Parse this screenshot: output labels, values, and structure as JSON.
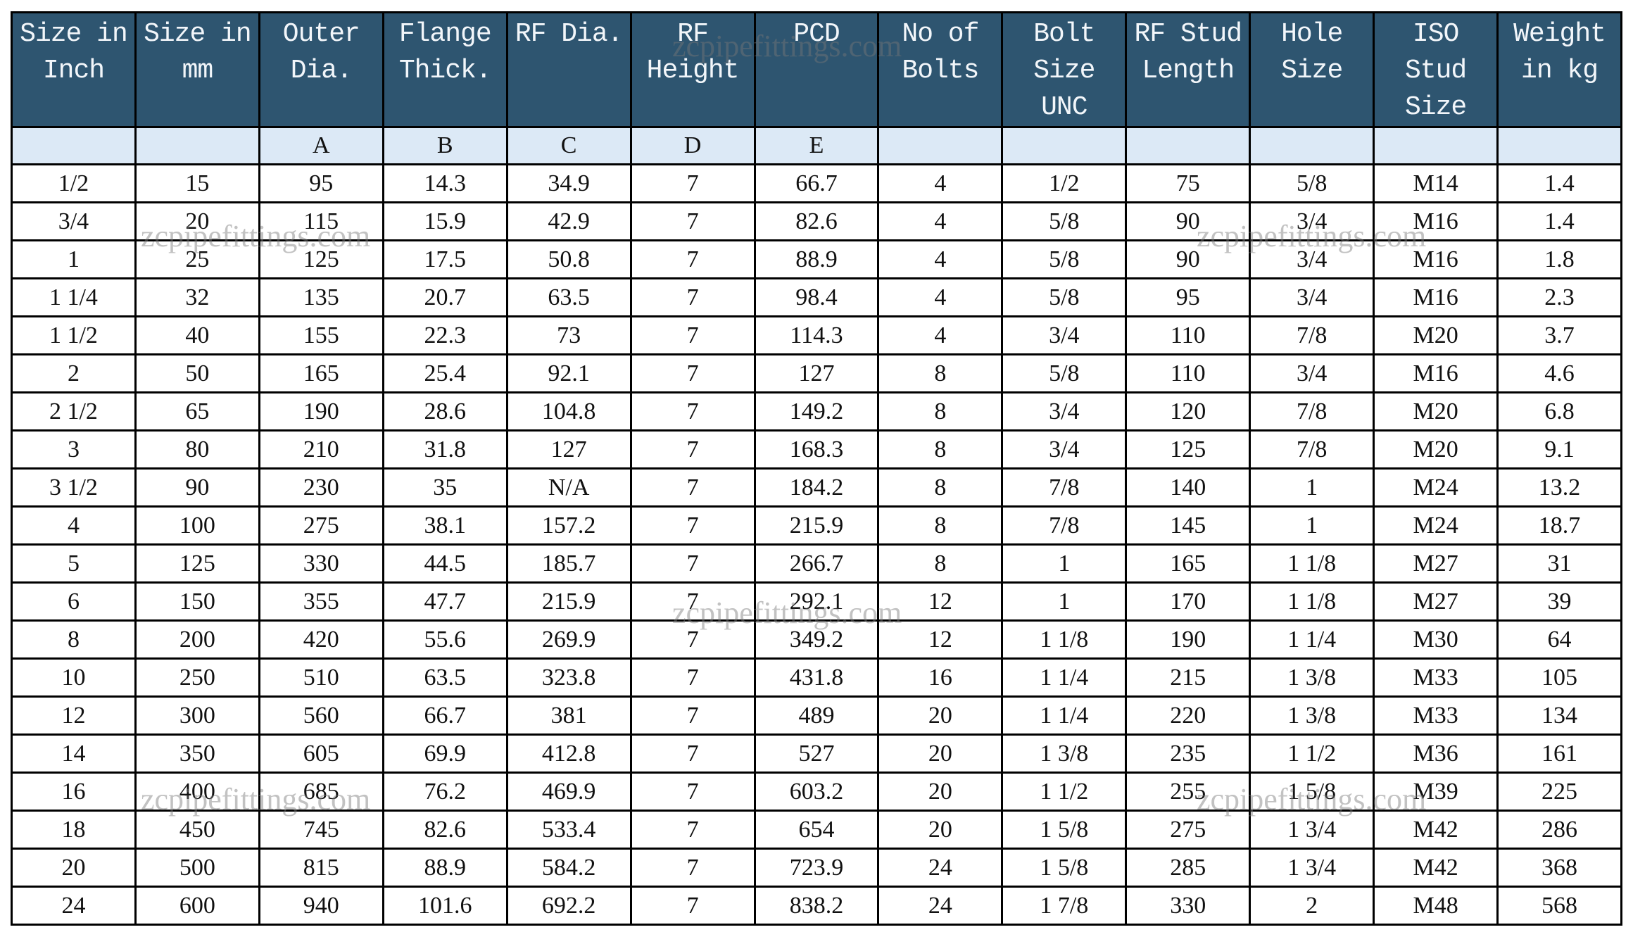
{
  "headers": [
    "Size in Inch",
    "Size in mm",
    "Outer Dia.",
    "Flange Thick.",
    "RF Dia.",
    "RF Height",
    "PCD",
    "No of Bolts",
    "Bolt Size UNC",
    "RF Stud Length",
    "Hole Size",
    "ISO Stud Size",
    "Weight in kg"
  ],
  "letters": [
    "",
    "",
    "A",
    "B",
    "C",
    "D",
    "E",
    "",
    "",
    "",
    "",
    "",
    ""
  ],
  "rows": [
    [
      "1/2",
      "15",
      "95",
      "14.3",
      "34.9",
      "7",
      "66.7",
      "4",
      "1/2",
      "75",
      "5/8",
      "M14",
      "1.4"
    ],
    [
      "3/4",
      "20",
      "115",
      "15.9",
      "42.9",
      "7",
      "82.6",
      "4",
      "5/8",
      "90",
      "3/4",
      "M16",
      "1.4"
    ],
    [
      "1",
      "25",
      "125",
      "17.5",
      "50.8",
      "7",
      "88.9",
      "4",
      "5/8",
      "90",
      "3/4",
      "M16",
      "1.8"
    ],
    [
      "1 1/4",
      "32",
      "135",
      "20.7",
      "63.5",
      "7",
      "98.4",
      "4",
      "5/8",
      "95",
      "3/4",
      "M16",
      "2.3"
    ],
    [
      "1 1/2",
      "40",
      "155",
      "22.3",
      "73",
      "7",
      "114.3",
      "4",
      "3/4",
      "110",
      "7/8",
      "M20",
      "3.7"
    ],
    [
      "2",
      "50",
      "165",
      "25.4",
      "92.1",
      "7",
      "127",
      "8",
      "5/8",
      "110",
      "3/4",
      "M16",
      "4.6"
    ],
    [
      "2 1/2",
      "65",
      "190",
      "28.6",
      "104.8",
      "7",
      "149.2",
      "8",
      "3/4",
      "120",
      "7/8",
      "M20",
      "6.8"
    ],
    [
      "3",
      "80",
      "210",
      "31.8",
      "127",
      "7",
      "168.3",
      "8",
      "3/4",
      "125",
      "7/8",
      "M20",
      "9.1"
    ],
    [
      "3 1/2",
      "90",
      "230",
      "35",
      "N/A",
      "7",
      "184.2",
      "8",
      "7/8",
      "140",
      "1",
      "M24",
      "13.2"
    ],
    [
      "4",
      "100",
      "275",
      "38.1",
      "157.2",
      "7",
      "215.9",
      "8",
      "7/8",
      "145",
      "1",
      "M24",
      "18.7"
    ],
    [
      "5",
      "125",
      "330",
      "44.5",
      "185.7",
      "7",
      "266.7",
      "8",
      "1",
      "165",
      "1 1/8",
      "M27",
      "31"
    ],
    [
      "6",
      "150",
      "355",
      "47.7",
      "215.9",
      "7",
      "292.1",
      "12",
      "1",
      "170",
      "1 1/8",
      "M27",
      "39"
    ],
    [
      "8",
      "200",
      "420",
      "55.6",
      "269.9",
      "7",
      "349.2",
      "12",
      "1 1/8",
      "190",
      "1 1/4",
      "M30",
      "64"
    ],
    [
      "10",
      "250",
      "510",
      "63.5",
      "323.8",
      "7",
      "431.8",
      "16",
      "1 1/4",
      "215",
      "1 3/8",
      "M33",
      "105"
    ],
    [
      "12",
      "300",
      "560",
      "66.7",
      "381",
      "7",
      "489",
      "20",
      "1 1/4",
      "220",
      "1 3/8",
      "M33",
      "134"
    ],
    [
      "14",
      "350",
      "605",
      "69.9",
      "412.8",
      "7",
      "527",
      "20",
      "1 3/8",
      "235",
      "1 1/2",
      "M36",
      "161"
    ],
    [
      "16",
      "400",
      "685",
      "76.2",
      "469.9",
      "7",
      "603.2",
      "20",
      "1 1/2",
      "255",
      "1 5/8",
      "M39",
      "225"
    ],
    [
      "18",
      "450",
      "745",
      "82.6",
      "533.4",
      "7",
      "654",
      "20",
      "1 5/8",
      "275",
      "1 3/4",
      "M42",
      "286"
    ],
    [
      "20",
      "500",
      "815",
      "88.9",
      "584.2",
      "7",
      "723.9",
      "24",
      "1 5/8",
      "285",
      "1 3/4",
      "M42",
      "368"
    ],
    [
      "24",
      "600",
      "940",
      "101.6",
      "692.2",
      "7",
      "838.2",
      "24",
      "1 7/8",
      "330",
      "2",
      "M48",
      "568"
    ]
  ],
  "watermark": "zcpipefittings.com",
  "colors": {
    "header_bg": "#2e5570",
    "letter_row_bg": "#dce9f6"
  }
}
